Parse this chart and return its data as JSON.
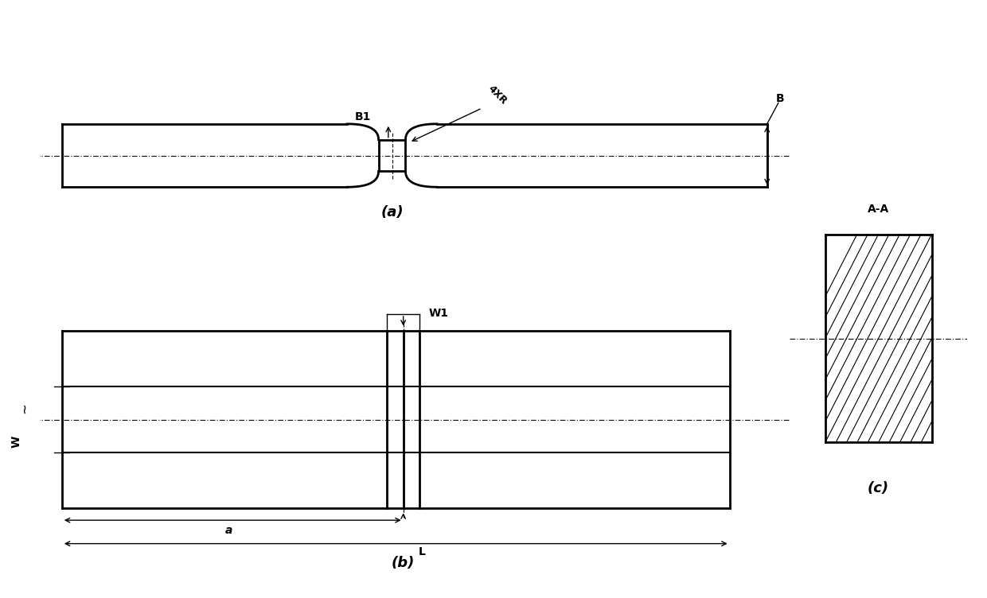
{
  "bg_color": "#ffffff",
  "line_color": "#000000",
  "fig_width": 12.4,
  "fig_height": 7.52,
  "label_a": "(a)",
  "label_b": "(b)",
  "label_c": "(c)",
  "label_B1": "B1",
  "label_4XR": "4XR",
  "label_B": "B",
  "label_W1": "W1",
  "label_W": "W",
  "label_a_dim": "a",
  "label_L": "L",
  "label_AA": "A-A"
}
